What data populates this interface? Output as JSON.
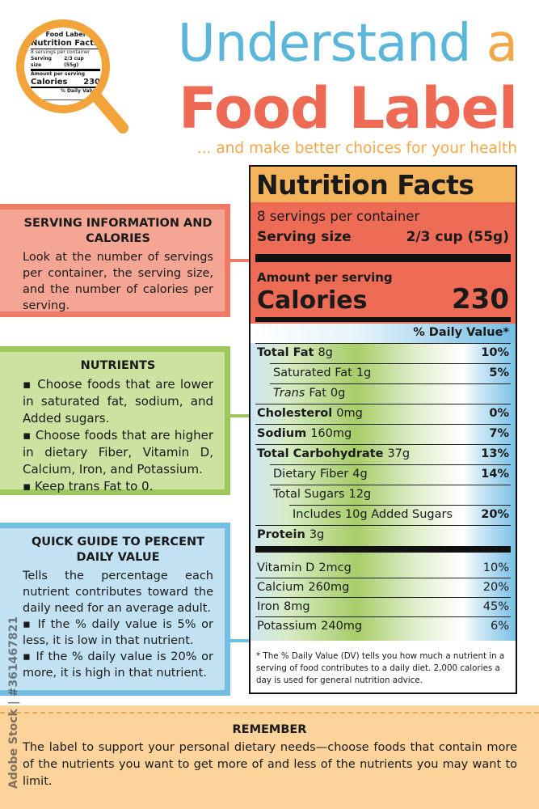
{
  "header": {
    "title_word1": "Understand",
    "title_word2": "a",
    "title_line2": "Food Label",
    "subtitle": "... and make better choices for your health"
  },
  "icon": {
    "title": "Food Label",
    "heading": "Nutrition Facts",
    "servings": "8 servings per container",
    "serving_size_label": "Serving size",
    "serving_size_value": "2/3 cup (55g)",
    "amount": "Amount per serving",
    "calories_label": "Calories",
    "calories_value": "230",
    "dv_header": "% Daily Value*"
  },
  "panels": [
    {
      "title": "SERVING INFORMATION AND CALORIES",
      "paragraphs": [
        "Look at the number of servings per container, the serving size, and the number of calories per serving."
      ]
    },
    {
      "title": "NUTRIENTS",
      "paragraphs": [
        "▪ Choose foods that are lower in saturated fat, sodium, and Added sugars.",
        "▪ Choose foods that are higher in dietary Fiber, Vitamin D, Calcium, Iron, and Potassium.",
        "▪ Keep trans Fat to 0."
      ]
    },
    {
      "title": "QUICK GUIDE TO PERCENT DAILY VALUE",
      "paragraphs": [
        "Tells the percentage each nutrient contributes toward the daily need for an average adult.",
        "▪ If the % daily value is 5% or less, it is low in that nutrient.",
        "▪ If the % daily value is 20% or more, it is high in that nutrient."
      ]
    }
  ],
  "label": {
    "title": "Nutrition Facts",
    "servings": "8 servings per container",
    "serving_size_label": "Serving size",
    "serving_size_value": "2/3 cup (55g)",
    "amount": "Amount per serving",
    "calories_label": "Calories",
    "calories_value": "230",
    "dv_header": "% Daily Value*",
    "rows": [
      {
        "name": "Total Fat",
        "amount": "8g",
        "dv": "10%",
        "bold": true,
        "indent": 0
      },
      {
        "name": "Saturated Fat",
        "amount": "1g",
        "dv": "5%",
        "bold": false,
        "indent": 1
      },
      {
        "italic": "Trans",
        "name": "Fat",
        "amount": "0g",
        "bold": false,
        "indent": 1
      },
      {
        "name": "Cholesterol",
        "amount": "0mg",
        "dv": "0%",
        "bold": true,
        "indent": 0
      },
      {
        "name": "Sodium",
        "amount": "160mg",
        "dv": "7%",
        "bold": true,
        "indent": 0
      },
      {
        "name": "Total Carbohydrate",
        "amount": "37g",
        "dv": "13%",
        "bold": true,
        "indent": 0
      },
      {
        "name": "Dietary Fiber",
        "amount": "4g",
        "dv": "14%",
        "bold": false,
        "indent": 1
      },
      {
        "name": "Total Sugars",
        "amount": "12g",
        "bold": false,
        "indent": 1
      },
      {
        "name": "Includes 10g Added Sugars",
        "dv": "20%",
        "bold": false,
        "indent": 2
      },
      {
        "name": "Protein",
        "amount": "3g",
        "bold": true,
        "indent": 0
      }
    ],
    "vitamins": [
      {
        "name": "Vitamin D",
        "amount": "2mcg",
        "dv": "10%"
      },
      {
        "name": "Calcium",
        "amount": "260mg",
        "dv": "20%"
      },
      {
        "name": "Iron",
        "amount": "8mg",
        "dv": "45%"
      },
      {
        "name": "Potassium",
        "amount": "240mg",
        "dv": "6%"
      }
    ],
    "footnote": "* The % Daily Value (DV) tells you how much a nutrient in a serving of food contributes to a daily diet. 2,000 calories a day is used for general nutrition advice."
  },
  "remember": {
    "title": "REMEMBER",
    "text": "The label to support your personal dietary needs—choose foods that contain more of the nutrients you want to get more of and less of the nutrients you may want to limit."
  },
  "watermark": "Adobe Stock | #361467821"
}
